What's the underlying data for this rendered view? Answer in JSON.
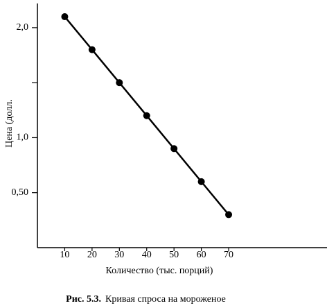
{
  "chart_data": {
    "type": "line",
    "y_label": "Цена (долл.",
    "x_label": "Количество (тыс. порций)",
    "caption_label": "Рис. 5.3.",
    "caption_text": "Кривая спроса на мороженое",
    "x": [
      10,
      20,
      30,
      40,
      50,
      60,
      70
    ],
    "values": [
      2.1,
      1.8,
      1.5,
      1.2,
      0.9,
      0.6,
      0.3
    ],
    "color": "#000000",
    "xlim": [
      0,
      106
    ],
    "xticks": [
      10,
      20,
      30,
      40,
      50,
      60,
      70
    ],
    "ylim": [
      0,
      2.22
    ],
    "yticks": [
      {
        "value": 0.5,
        "label": "0,50"
      },
      {
        "value": 1,
        "label": "1,0"
      },
      {
        "value": 1.5,
        "label": null
      },
      {
        "value": 2,
        "label": "2,0"
      }
    ],
    "grid": false
  }
}
